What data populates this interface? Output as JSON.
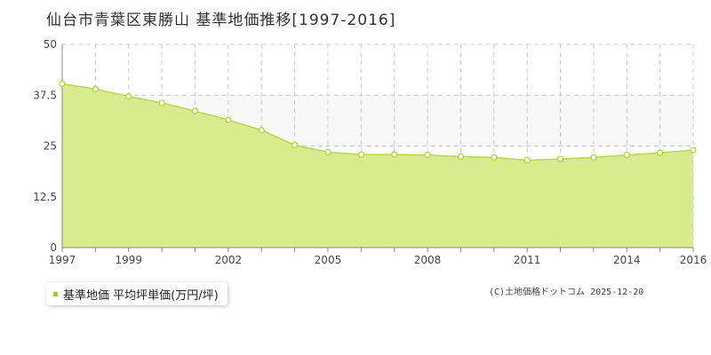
{
  "title": "仙台市青葉区東勝山 基準地価推移[1997-2016]",
  "legend": {
    "label": "基準地価 平均坪単価(万円/坪)"
  },
  "copyright": "(C)土地価格ドットコム 2025-12-20",
  "colors": {
    "area_fill": "#d8eb90",
    "line": "#b5d94a",
    "marker_stroke": "#a9d13a",
    "swatch": "#9fcd2b",
    "grid": "#cccccc",
    "band": "#f9f8f8"
  },
  "chart_data": {
    "type": "area",
    "title": "仙台市青葉区東勝山 基準地価推移[1997-2016]",
    "xlabel": "",
    "ylabel": "",
    "xlim": [
      1997,
      2016
    ],
    "ylim": [
      0,
      50
    ],
    "grid": true,
    "legend_position": "bottom-left",
    "y_ticks": [
      "0",
      "12.5",
      "25",
      "37.5",
      "50"
    ],
    "x_ticks": [
      "1997",
      "1999",
      "2002",
      "2005",
      "2008",
      "2011",
      "2014",
      "2016"
    ],
    "series": [
      {
        "name": "基準地価 平均坪単価(万円/坪)",
        "x": [
          1997,
          1998,
          1999,
          2000,
          2001,
          2002,
          2003,
          2004,
          2005,
          2006,
          2007,
          2008,
          2009,
          2010,
          2011,
          2012,
          2013,
          2014,
          2015,
          2016
        ],
        "values": [
          40.3,
          39.0,
          37.2,
          35.6,
          33.6,
          31.4,
          28.9,
          25.2,
          23.5,
          22.9,
          22.9,
          22.8,
          22.4,
          22.2,
          21.5,
          21.8,
          22.2,
          22.8,
          23.3,
          24.0
        ]
      }
    ]
  }
}
